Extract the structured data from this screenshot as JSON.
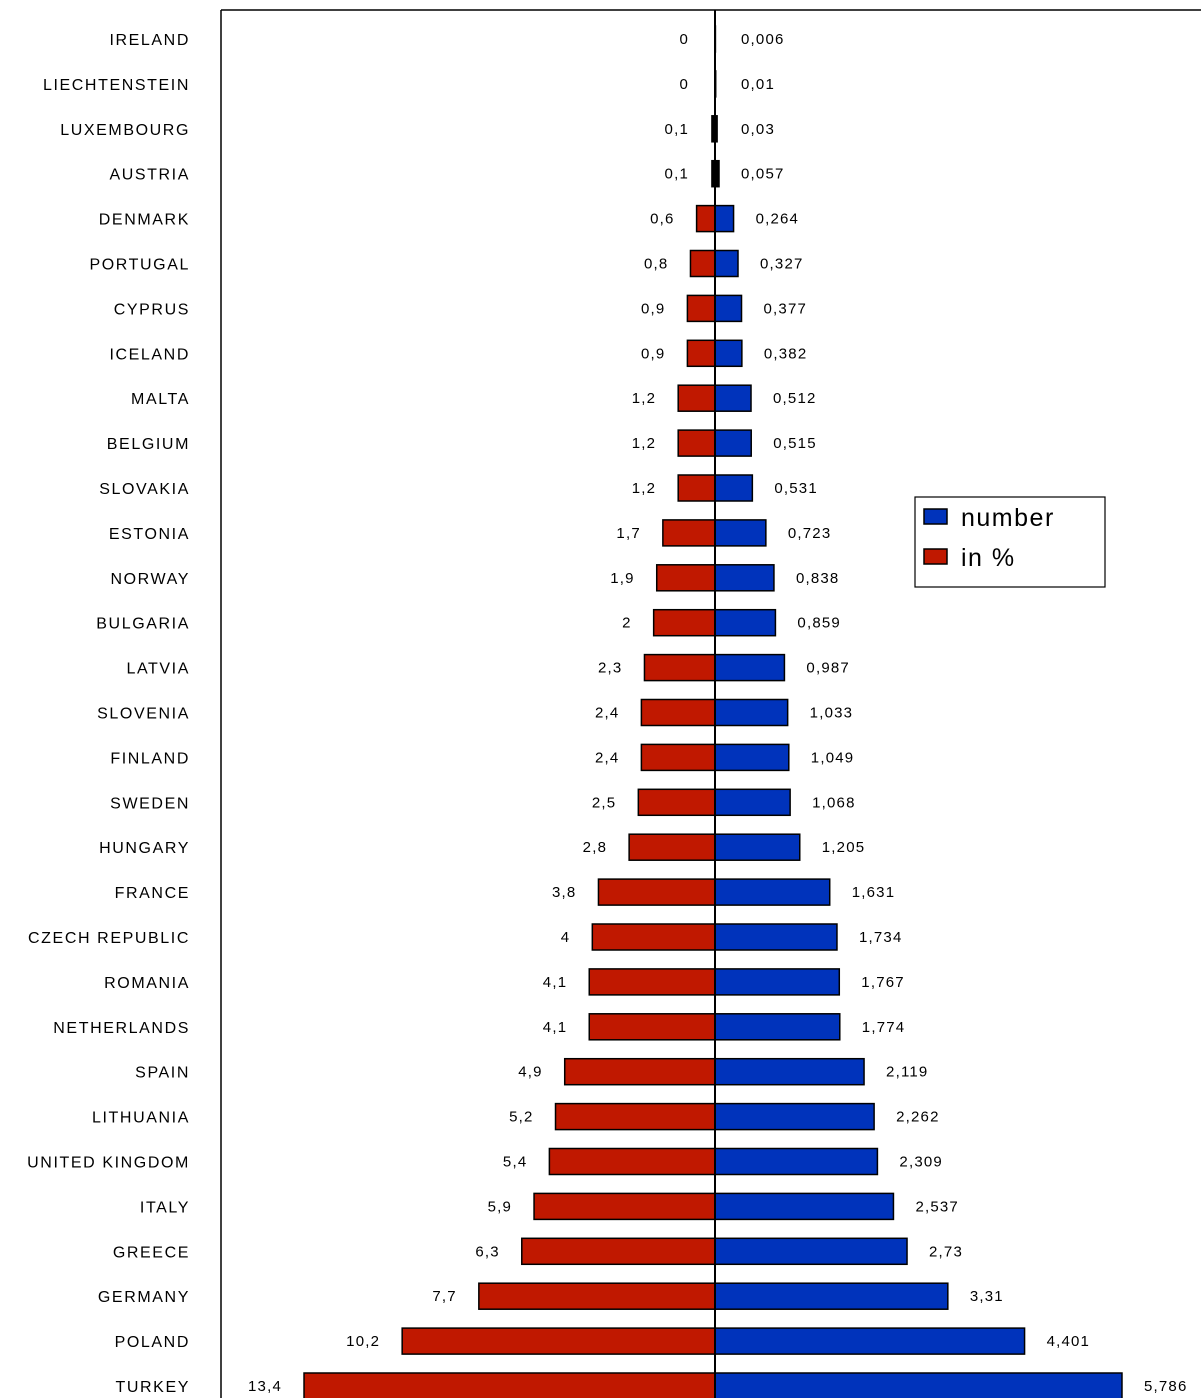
{
  "chart_data": {
    "type": "bar",
    "orientation": "horizontal-butterfly",
    "title": "",
    "xlabel": "",
    "ylabel": "",
    "grid": false,
    "legend_position": "right",
    "categories": [
      "IRELAND",
      "LIECHTENSTEIN",
      "LUXEMBOURG",
      "AUSTRIA",
      "DENMARK",
      "PORTUGAL",
      "CYPRUS",
      "ICELAND",
      "MALTA",
      "BELGIUM",
      "SLOVAKIA",
      "ESTONIA",
      "NORWAY",
      "BULGARIA",
      "LATVIA",
      "SLOVENIA",
      "FINLAND",
      "SWEDEN",
      "HUNGARY",
      "FRANCE",
      "CZECH REPUBLIC",
      "ROMANIA",
      "NETHERLANDS",
      "SPAIN",
      "LITHUANIA",
      "UNITED KINGDOM",
      "ITALY",
      "GREECE",
      "GERMANY",
      "POLAND",
      "TURKEY"
    ],
    "series": [
      {
        "name": "number",
        "side": "right",
        "color": "#0033BB",
        "values": [
          0.006,
          0.01,
          0.03,
          0.057,
          0.264,
          0.327,
          0.377,
          0.382,
          0.512,
          0.515,
          0.531,
          0.723,
          0.838,
          0.859,
          0.987,
          1.033,
          1.049,
          1.068,
          1.205,
          1.631,
          1.734,
          1.767,
          1.774,
          2.119,
          2.262,
          2.309,
          2.537,
          2.73,
          3.31,
          4.401,
          5.786
        ],
        "labels": [
          "0,006",
          "0,01",
          "0,03",
          "0,057",
          "0,264",
          "0,327",
          "0,377",
          "0,382",
          "0,512",
          "0,515",
          "0,531",
          "0,723",
          "0,838",
          "0,859",
          "0,987",
          "1,033",
          "1,049",
          "1,068",
          "1,205",
          "1,631",
          "1,734",
          "1,767",
          "1,774",
          "2,119",
          "2,262",
          "2,309",
          "2,537",
          "2,73",
          "3,31",
          "4,401",
          "5,786"
        ]
      },
      {
        "name": "in %",
        "side": "left",
        "color": "#C01800",
        "values": [
          0,
          0,
          0.1,
          0.1,
          0.6,
          0.8,
          0.9,
          0.9,
          1.2,
          1.2,
          1.2,
          1.7,
          1.9,
          2,
          2.3,
          2.4,
          2.4,
          2.5,
          2.8,
          3.8,
          4,
          4.1,
          4.1,
          4.9,
          5.2,
          5.4,
          5.9,
          6.3,
          7.7,
          10.2,
          13.4
        ],
        "labels": [
          "0",
          "0",
          "0,1",
          "0,1",
          "0,6",
          "0,8",
          "0,9",
          "0,9",
          "1,2",
          "1,2",
          "1,2",
          "1,7",
          "1,9",
          "2",
          "2,3",
          "2,4",
          "2,4",
          "2,5",
          "2,8",
          "3,8",
          "4",
          "4,1",
          "4,1",
          "4,9",
          "5,2",
          "5,4",
          "5,9",
          "6,3",
          "7,7",
          "10,2",
          "13,4"
        ]
      }
    ]
  }
}
